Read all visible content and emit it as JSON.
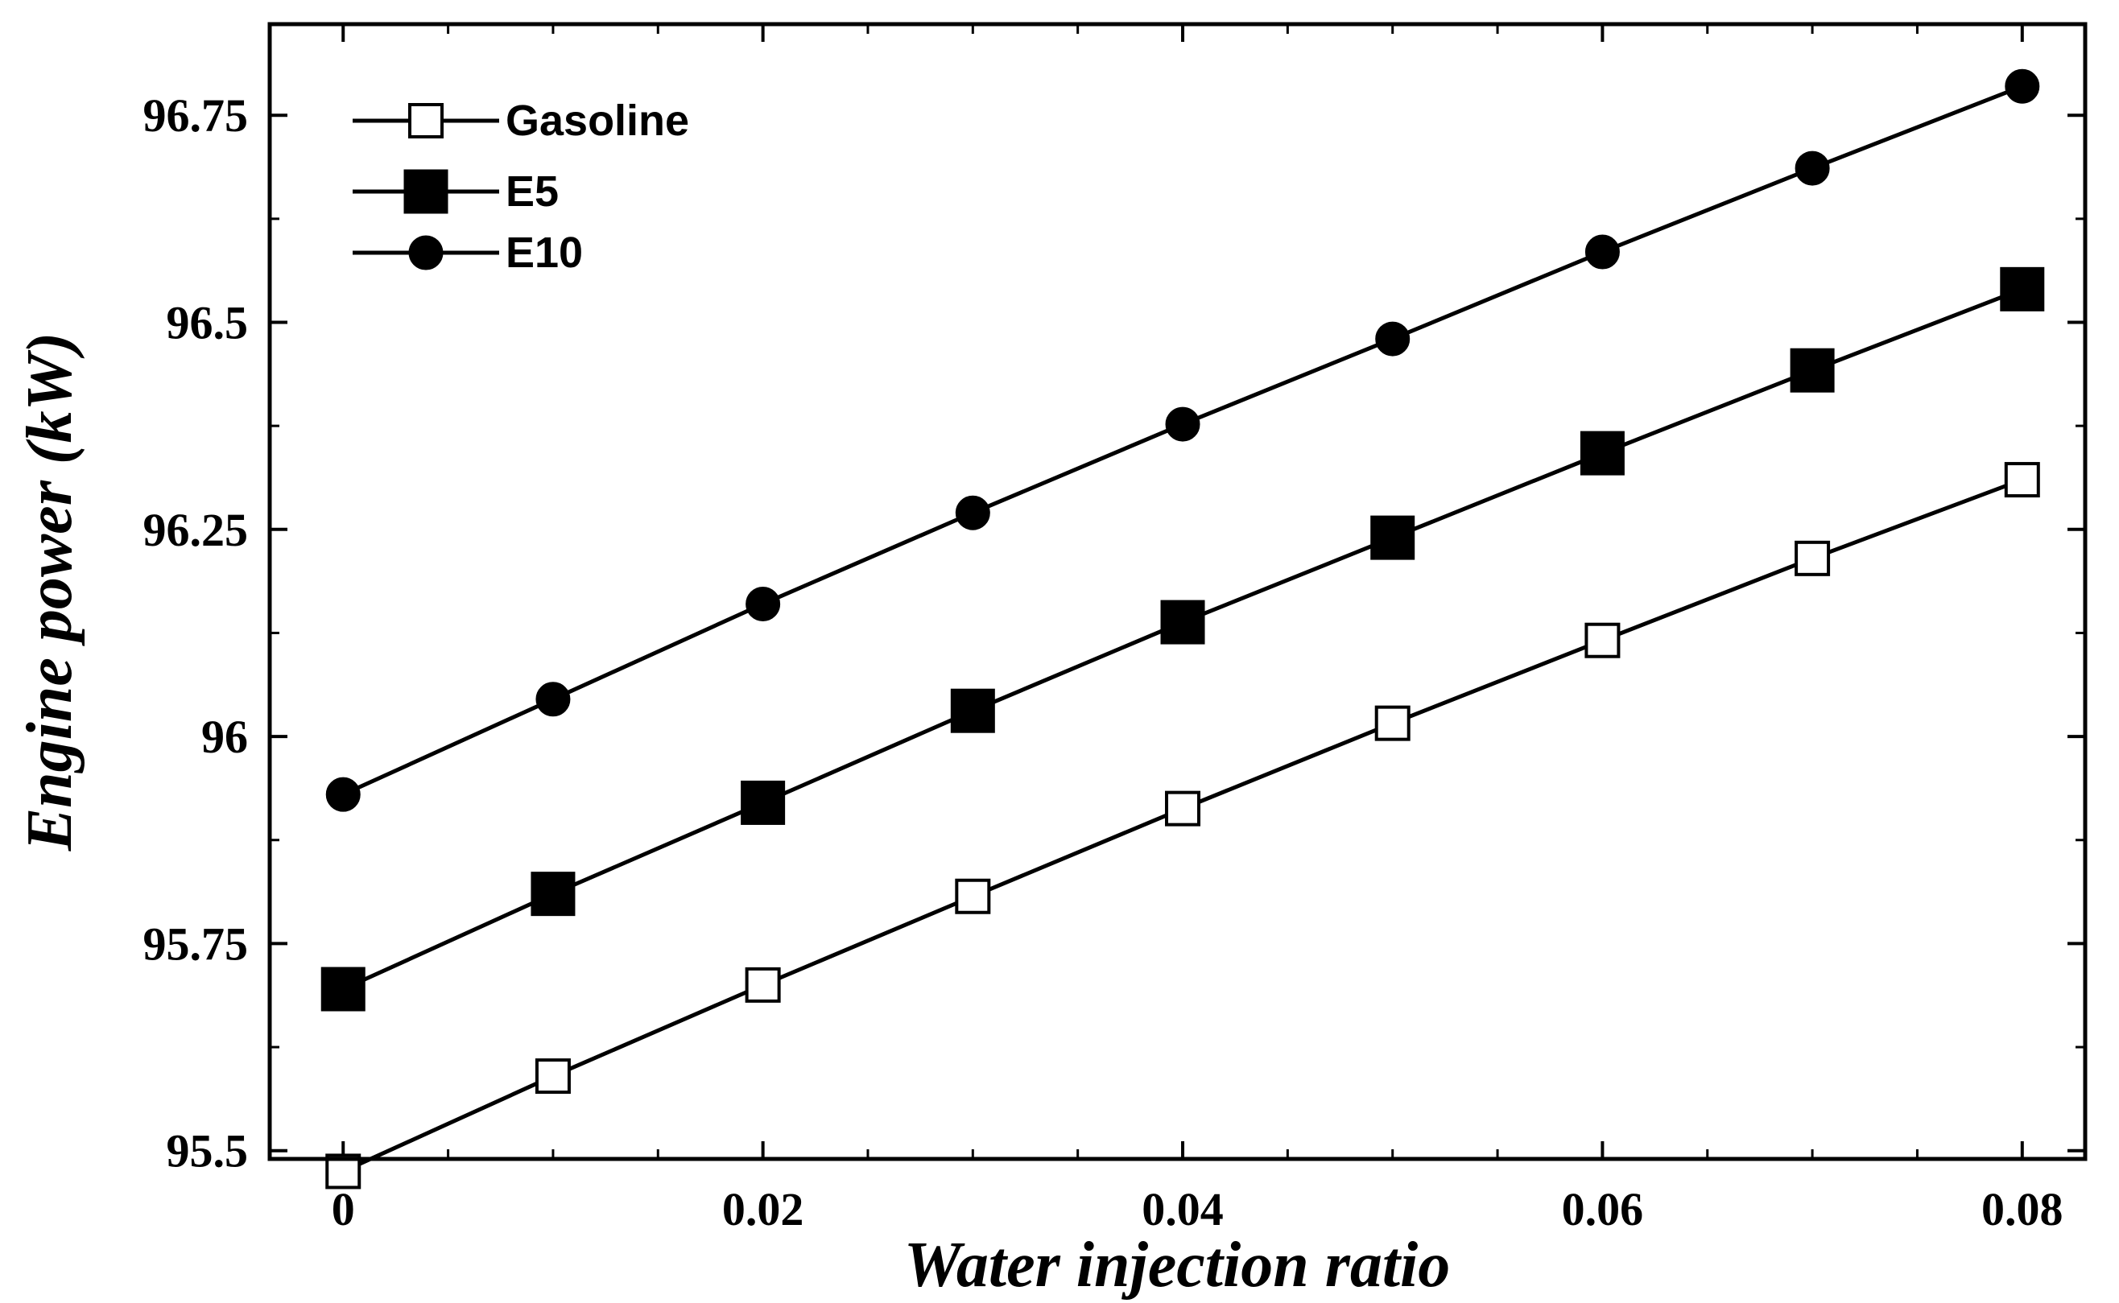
{
  "chart_data": {
    "type": "line",
    "title": "",
    "xlabel": "Water injection ratio",
    "ylabel": "Engine power (kW)",
    "xlim": [
      -0.0035,
      0.083
    ],
    "ylim": [
      95.49,
      96.86
    ],
    "x": [
      0,
      0.01,
      0.02,
      0.03,
      0.04,
      0.05,
      0.06,
      0.07,
      0.08
    ],
    "x_ticks": [
      0,
      0.02,
      0.04,
      0.06,
      0.08
    ],
    "x_tick_labels": [
      "0",
      "0.02",
      "0.04",
      "0.06",
      "0.08"
    ],
    "y_ticks": [
      95.5,
      95.75,
      96,
      96.25,
      96.5,
      96.75
    ],
    "y_tick_labels": [
      "95.5",
      "95.75",
      "96",
      "96.25",
      "96.5",
      "96.75"
    ],
    "grid": false,
    "legend_position": "top-left",
    "series": [
      {
        "name": "Gasoline",
        "marker": "open-square",
        "values": [
          95.475,
          95.59,
          95.7,
          95.807,
          95.913,
          96.016,
          96.116,
          96.215,
          96.31
        ]
      },
      {
        "name": "E5",
        "marker": "filled-square",
        "values": [
          95.695,
          95.81,
          95.92,
          96.031,
          96.138,
          96.24,
          96.342,
          96.442,
          96.54
        ]
      },
      {
        "name": "E10",
        "marker": "filled-circle",
        "values": [
          95.93,
          96.045,
          96.16,
          96.27,
          96.377,
          96.48,
          96.585,
          96.686,
          96.785
        ]
      }
    ]
  }
}
